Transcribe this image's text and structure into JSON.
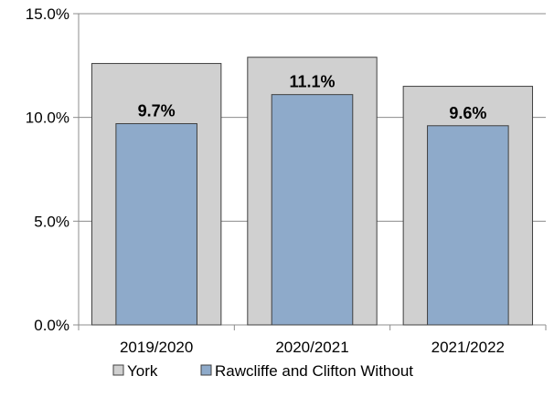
{
  "chart_data": {
    "type": "bar",
    "categories": [
      "2019/2020",
      "2020/2021",
      "2021/2022"
    ],
    "series": [
      {
        "name": "York",
        "values": [
          12.6,
          12.9,
          11.5
        ],
        "color": "#d0d0d0",
        "stroke": "#404040"
      },
      {
        "name": "Rawcliffe and Clifton Without",
        "values": [
          9.7,
          11.1,
          9.6
        ],
        "color": "#8eaaca",
        "stroke": "#404040"
      }
    ],
    "data_labels": [
      "9.7%",
      "11.1%",
      "9.6%"
    ],
    "y_ticks": [
      {
        "value": 0,
        "label": "0.0%"
      },
      {
        "value": 5,
        "label": "5.0%"
      },
      {
        "value": 10,
        "label": "10.0%"
      },
      {
        "value": 15,
        "label": "15.0%"
      }
    ],
    "ylim": [
      0,
      15
    ],
    "gridlines": true,
    "legend_position": "bottom",
    "title": "",
    "xlabel": "",
    "ylabel": ""
  }
}
